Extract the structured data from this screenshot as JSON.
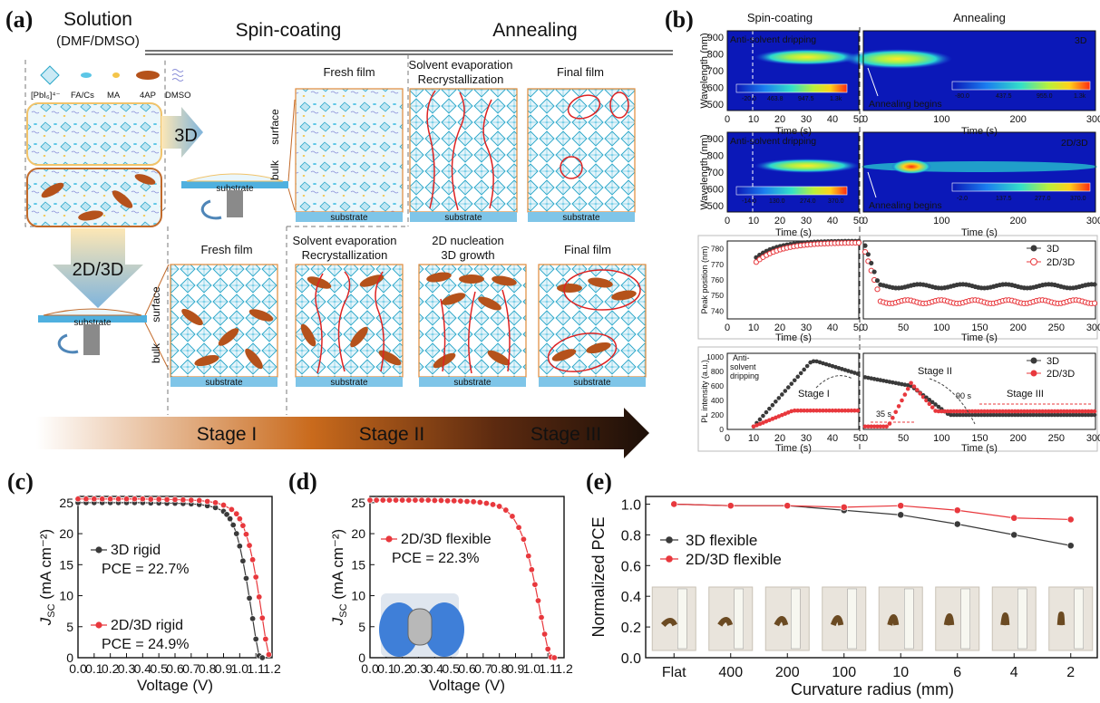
{
  "panel_labels": {
    "a": "(a)",
    "b": "(b)",
    "c": "(c)",
    "d": "(d)",
    "e": "(e)"
  },
  "panel_a": {
    "header": {
      "solution": "Solution",
      "solvent": "(DMF/DMSO)",
      "spin": "Spin-coating",
      "anneal": "Annealing"
    },
    "legend": {
      "pbi": "[PbI₆]⁴⁻",
      "facs": "FA/Cs",
      "ma": "MA",
      "ap": "4AP",
      "dmso": "DMSO"
    },
    "arrow_3d": "3D",
    "arrow_2d3d": "2D/3D",
    "substrate": "substrate",
    "surface": "surface",
    "bulk": "bulk",
    "row1": {
      "fresh": "Fresh film",
      "evap1": "Solvent evaporation",
      "evap2": "Recrystallization",
      "final": "Final film"
    },
    "row2": {
      "fresh": "Fresh film",
      "evap1": "Solvent evaporation",
      "evap2": "Recrystallization",
      "nuc1": "2D nucleation",
      "nuc2": "3D growth",
      "final": "Final film"
    },
    "stages": [
      "Stage I",
      "Stage II",
      "Stage III"
    ]
  },
  "panel_b": {
    "header": {
      "spin": "Spin-coating",
      "anneal": "Annealing"
    },
    "map1": {
      "note": "Anti-solvent dripping",
      "tag": "3D",
      "begins": "Annealing begins",
      "cb_left": [
        "-20.0",
        "463.8",
        "947.5",
        "1.3k"
      ],
      "cb_right": [
        "-80.0",
        "437.5",
        "955.0",
        "1.3k"
      ]
    },
    "map2": {
      "note": "Anti-solvent dripping",
      "tag": "2D/3D",
      "begins": "Annealing begins",
      "cb_left": [
        "-14.0",
        "130.0",
        "274.0",
        "370.0"
      ],
      "cb_right": [
        "-2.0",
        "137.5",
        "277.0",
        "370.0"
      ]
    },
    "ylabel_map": "Wavelength (nm)",
    "map_yticks": [
      "900",
      "800",
      "700",
      "600",
      "500"
    ],
    "spin_xticks": [
      "0",
      "10",
      "20",
      "30",
      "40",
      "50"
    ],
    "anneal_xticks_map": [
      "0",
      "100",
      "200",
      "300"
    ],
    "xlabel": "Time (s)",
    "peak": {
      "ylabel": "Peak position (nm)",
      "yticks": [
        "780",
        "770",
        "760",
        "750",
        "740"
      ],
      "legend": [
        "3D",
        "2D/3D"
      ],
      "anneal_xticks": [
        "0",
        "50",
        "100",
        "150",
        "200",
        "250",
        "300"
      ]
    },
    "pl": {
      "ylabel": "PL intensity (a.u.)",
      "yticks": [
        "1000",
        "800",
        "600",
        "400",
        "200",
        "0"
      ],
      "legend": [
        "3D",
        "2D/3D"
      ],
      "anti": [
        "Anti-",
        "solvent",
        "dripping"
      ],
      "stage1": "Stage I",
      "stage2": "Stage II",
      "stage3": "Stage III",
      "t35": "35 s",
      "t90": "90 s",
      "anneal_xticks": [
        "0",
        "50",
        "100",
        "150",
        "200",
        "250",
        "300"
      ]
    },
    "colors": {
      "3D": "#3a3a3a",
      "2D/3D": "#e8383d"
    }
  },
  "chart_data": [
    {
      "type": "line",
      "panel": "(c)",
      "xlabel": "Voltage (V)",
      "ylabel": "J_SC (mA cm⁻²)",
      "xlim": [
        0,
        1.2
      ],
      "ylim": [
        0,
        26
      ],
      "xticks": [
        "0.0",
        "0.1",
        "0.2",
        "0.3",
        "0.4",
        "0.5",
        "0.6",
        "0.7",
        "0.8",
        "0.9",
        "1.0",
        "1.1",
        "1.2"
      ],
      "yticks": [
        "0",
        "5",
        "10",
        "15",
        "20",
        "25"
      ],
      "series": [
        {
          "name": "3D rigid",
          "pce": "PCE = 22.7%",
          "color": "#3a3a3a",
          "x": [
            0,
            0.05,
            0.1,
            0.15,
            0.2,
            0.25,
            0.3,
            0.35,
            0.4,
            0.45,
            0.5,
            0.55,
            0.6,
            0.65,
            0.7,
            0.75,
            0.8,
            0.85,
            0.9,
            0.92,
            0.94,
            0.96,
            0.98,
            1.0,
            1.02,
            1.04,
            1.06,
            1.08,
            1.1,
            1.12,
            1.14
          ],
          "y": [
            25.0,
            25.0,
            25.0,
            25.0,
            25.0,
            25.0,
            25.0,
            25.0,
            25.0,
            24.95,
            24.95,
            24.9,
            24.9,
            24.85,
            24.8,
            24.7,
            24.5,
            24.2,
            23.6,
            23.1,
            22.4,
            21.4,
            20.0,
            18.0,
            15.6,
            12.8,
            9.6,
            6.3,
            3.0,
            0.3,
            0.0
          ]
        },
        {
          "name": "2D/3D rigid",
          "pce": "PCE = 24.9%",
          "color": "#e8383d",
          "x": [
            0,
            0.05,
            0.1,
            0.15,
            0.2,
            0.25,
            0.3,
            0.35,
            0.4,
            0.45,
            0.5,
            0.55,
            0.6,
            0.65,
            0.7,
            0.75,
            0.8,
            0.85,
            0.9,
            0.95,
            0.98,
            1.0,
            1.02,
            1.04,
            1.06,
            1.08,
            1.1,
            1.12,
            1.14,
            1.16,
            1.18
          ],
          "y": [
            25.6,
            25.6,
            25.6,
            25.6,
            25.6,
            25.6,
            25.6,
            25.6,
            25.6,
            25.55,
            25.55,
            25.5,
            25.5,
            25.45,
            25.4,
            25.35,
            25.2,
            25.0,
            24.6,
            23.9,
            23.2,
            22.4,
            21.3,
            19.9,
            18.1,
            15.8,
            13.0,
            9.8,
            6.4,
            3.0,
            0.5
          ]
        }
      ]
    },
    {
      "type": "line",
      "panel": "(d)",
      "xlabel": "Voltage (V)",
      "ylabel": "J_SC (mA cm⁻²)",
      "xlim": [
        0,
        1.2
      ],
      "ylim": [
        0,
        26
      ],
      "xticks": [
        "0.0",
        "0.1",
        "0.2",
        "0.3",
        "0.4",
        "0.5",
        "0.6",
        "0.7",
        "0.8",
        "0.9",
        "1.0",
        "1.1",
        "1.2"
      ],
      "yticks": [
        "0",
        "5",
        "10",
        "15",
        "20",
        "25"
      ],
      "series": [
        {
          "name": "2D/3D flexible",
          "pce": "PCE = 22.3%",
          "color": "#e8383d",
          "x": [
            0,
            0.04,
            0.08,
            0.12,
            0.16,
            0.2,
            0.24,
            0.28,
            0.32,
            0.36,
            0.4,
            0.44,
            0.48,
            0.52,
            0.56,
            0.6,
            0.64,
            0.68,
            0.72,
            0.76,
            0.8,
            0.84,
            0.88,
            0.92,
            0.95,
            0.98,
            1.0,
            1.02,
            1.04,
            1.06,
            1.08,
            1.1,
            1.12,
            1.14
          ],
          "y": [
            25.4,
            25.4,
            25.4,
            25.4,
            25.4,
            25.4,
            25.4,
            25.4,
            25.4,
            25.4,
            25.35,
            25.35,
            25.3,
            25.3,
            25.25,
            25.2,
            25.15,
            25.05,
            24.9,
            24.7,
            24.4,
            23.8,
            22.8,
            21.0,
            19.1,
            16.4,
            14.2,
            11.8,
            9.2,
            6.5,
            3.8,
            1.4,
            0.1,
            0.0
          ]
        }
      ]
    },
    {
      "type": "line",
      "panel": "(e)",
      "xlabel": "Curvature radius (mm)",
      "ylabel": "Normalized PCE",
      "categories": [
        "Flat",
        "400",
        "200",
        "100",
        "10",
        "6",
        "4",
        "2"
      ],
      "ylim": [
        0,
        1.05
      ],
      "yticks": [
        "0.0",
        "0.2",
        "0.4",
        "0.6",
        "0.8",
        "1.0"
      ],
      "series": [
        {
          "name": "3D flexible",
          "color": "#3a3a3a",
          "values": [
            1.0,
            0.99,
            0.99,
            0.96,
            0.93,
            0.87,
            0.8,
            0.73
          ]
        },
        {
          "name": "2D/3D flexible",
          "color": "#e8383d",
          "values": [
            1.0,
            0.99,
            0.99,
            0.98,
            0.99,
            0.96,
            0.91,
            0.9
          ]
        }
      ]
    }
  ]
}
